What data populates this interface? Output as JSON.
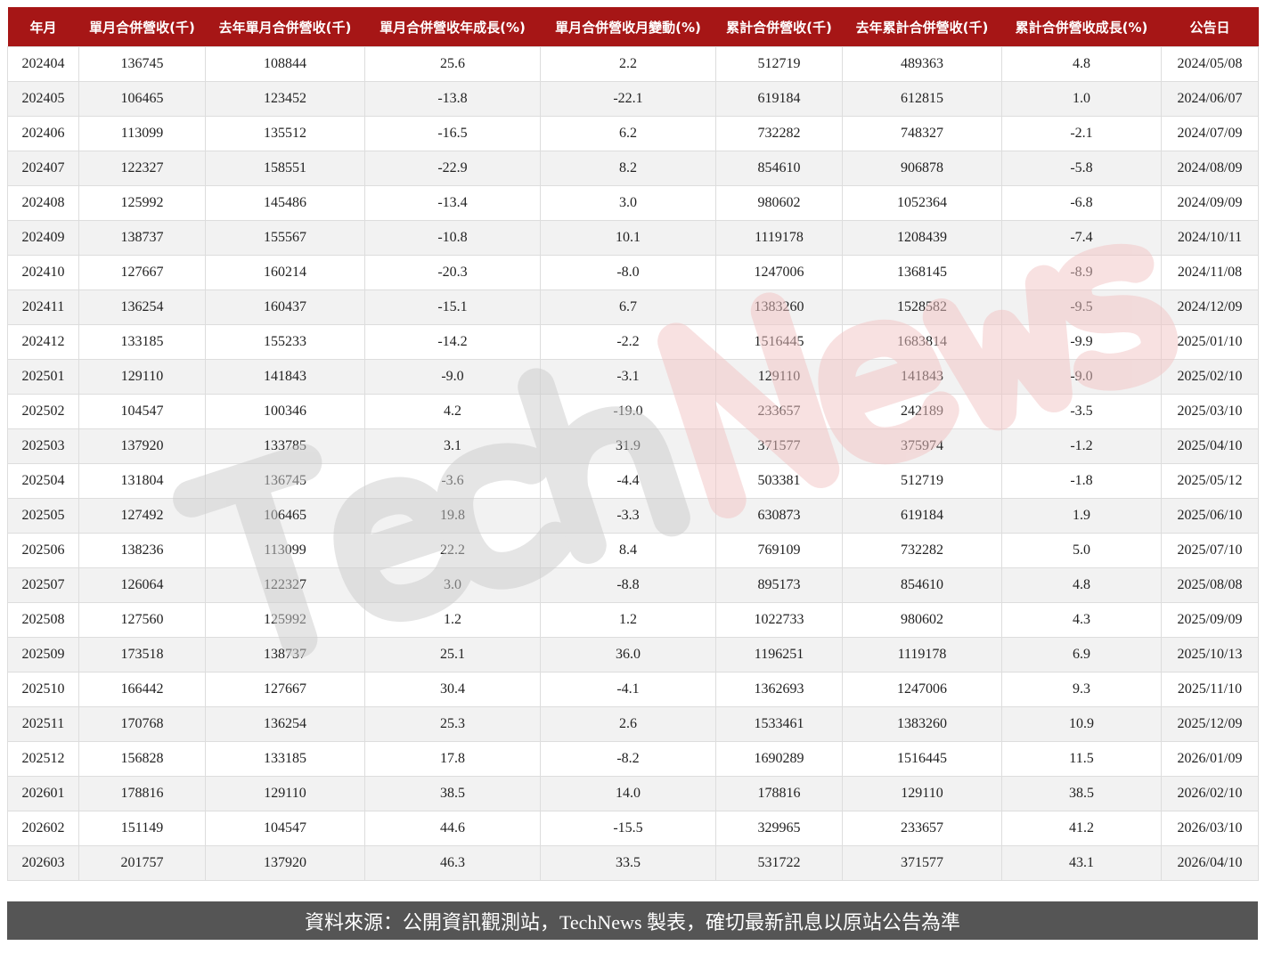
{
  "table": {
    "headers": [
      "年月",
      "單月合併營收(千)",
      "去年單月合併營收(千)",
      "單月合併營收年成長(%)",
      "單月合併營收月變動(%)",
      "累計合併營收(千)",
      "去年累計合併營收(千)",
      "累計合併營收成長(%)",
      "公告日"
    ],
    "rows": [
      [
        "202404",
        "136745",
        "108844",
        "25.6",
        "2.2",
        "512719",
        "489363",
        "4.8",
        "2024/05/08"
      ],
      [
        "202405",
        "106465",
        "123452",
        "-13.8",
        "-22.1",
        "619184",
        "612815",
        "1.0",
        "2024/06/07"
      ],
      [
        "202406",
        "113099",
        "135512",
        "-16.5",
        "6.2",
        "732282",
        "748327",
        "-2.1",
        "2024/07/09"
      ],
      [
        "202407",
        "122327",
        "158551",
        "-22.9",
        "8.2",
        "854610",
        "906878",
        "-5.8",
        "2024/08/09"
      ],
      [
        "202408",
        "125992",
        "145486",
        "-13.4",
        "3.0",
        "980602",
        "1052364",
        "-6.8",
        "2024/09/09"
      ],
      [
        "202409",
        "138737",
        "155567",
        "-10.8",
        "10.1",
        "1119178",
        "1208439",
        "-7.4",
        "2024/10/11"
      ],
      [
        "202410",
        "127667",
        "160214",
        "-20.3",
        "-8.0",
        "1247006",
        "1368145",
        "-8.9",
        "2024/11/08"
      ],
      [
        "202411",
        "136254",
        "160437",
        "-15.1",
        "6.7",
        "1383260",
        "1528582",
        "-9.5",
        "2024/12/09"
      ],
      [
        "202412",
        "133185",
        "155233",
        "-14.2",
        "-2.2",
        "1516445",
        "1683814",
        "-9.9",
        "2025/01/10"
      ],
      [
        "202501",
        "129110",
        "141843",
        "-9.0",
        "-3.1",
        "129110",
        "141843",
        "-9.0",
        "2025/02/10"
      ],
      [
        "202502",
        "104547",
        "100346",
        "4.2",
        "-19.0",
        "233657",
        "242189",
        "-3.5",
        "2025/03/10"
      ],
      [
        "202503",
        "137920",
        "133785",
        "3.1",
        "31.9",
        "371577",
        "375974",
        "-1.2",
        "2025/04/10"
      ],
      [
        "202504",
        "131804",
        "136745",
        "-3.6",
        "-4.4",
        "503381",
        "512719",
        "-1.8",
        "2025/05/12"
      ],
      [
        "202505",
        "127492",
        "106465",
        "19.8",
        "-3.3",
        "630873",
        "619184",
        "1.9",
        "2025/06/10"
      ],
      [
        "202506",
        "138236",
        "113099",
        "22.2",
        "8.4",
        "769109",
        "732282",
        "5.0",
        "2025/07/10"
      ],
      [
        "202507",
        "126064",
        "122327",
        "3.0",
        "-8.8",
        "895173",
        "854610",
        "4.8",
        "2025/08/08"
      ],
      [
        "202508",
        "127560",
        "125992",
        "1.2",
        "1.2",
        "1022733",
        "980602",
        "4.3",
        "2025/09/09"
      ],
      [
        "202509",
        "173518",
        "138737",
        "25.1",
        "36.0",
        "1196251",
        "1119178",
        "6.9",
        "2025/10/13"
      ],
      [
        "202510",
        "166442",
        "127667",
        "30.4",
        "-4.1",
        "1362693",
        "1247006",
        "9.3",
        "2025/11/10"
      ],
      [
        "202511",
        "170768",
        "136254",
        "25.3",
        "2.6",
        "1533461",
        "1383260",
        "10.9",
        "2025/12/09"
      ],
      [
        "202512",
        "156828",
        "133185",
        "17.8",
        "-8.2",
        "1690289",
        "1516445",
        "11.5",
        "2026/01/09"
      ],
      [
        "202601",
        "178816",
        "129110",
        "38.5",
        "14.0",
        "178816",
        "129110",
        "38.5",
        "2026/02/10"
      ],
      [
        "202602",
        "151149",
        "104547",
        "44.6",
        "-15.5",
        "329965",
        "233657",
        "41.2",
        "2026/03/10"
      ],
      [
        "202603",
        "201757",
        "137920",
        "46.3",
        "33.5",
        "531722",
        "371577",
        "43.1",
        "2026/04/10"
      ]
    ]
  },
  "watermark": {
    "part1": "Tech",
    "part2": "News",
    "color1": "#cccccc",
    "color2": "#f2c4c4"
  },
  "footer": {
    "text": "資料來源：公開資訊觀測站，TechNews 製表，確切最新訊息以原站公告為準"
  },
  "colors": {
    "header_bg": "#a61616",
    "footer_bg": "#555555"
  }
}
